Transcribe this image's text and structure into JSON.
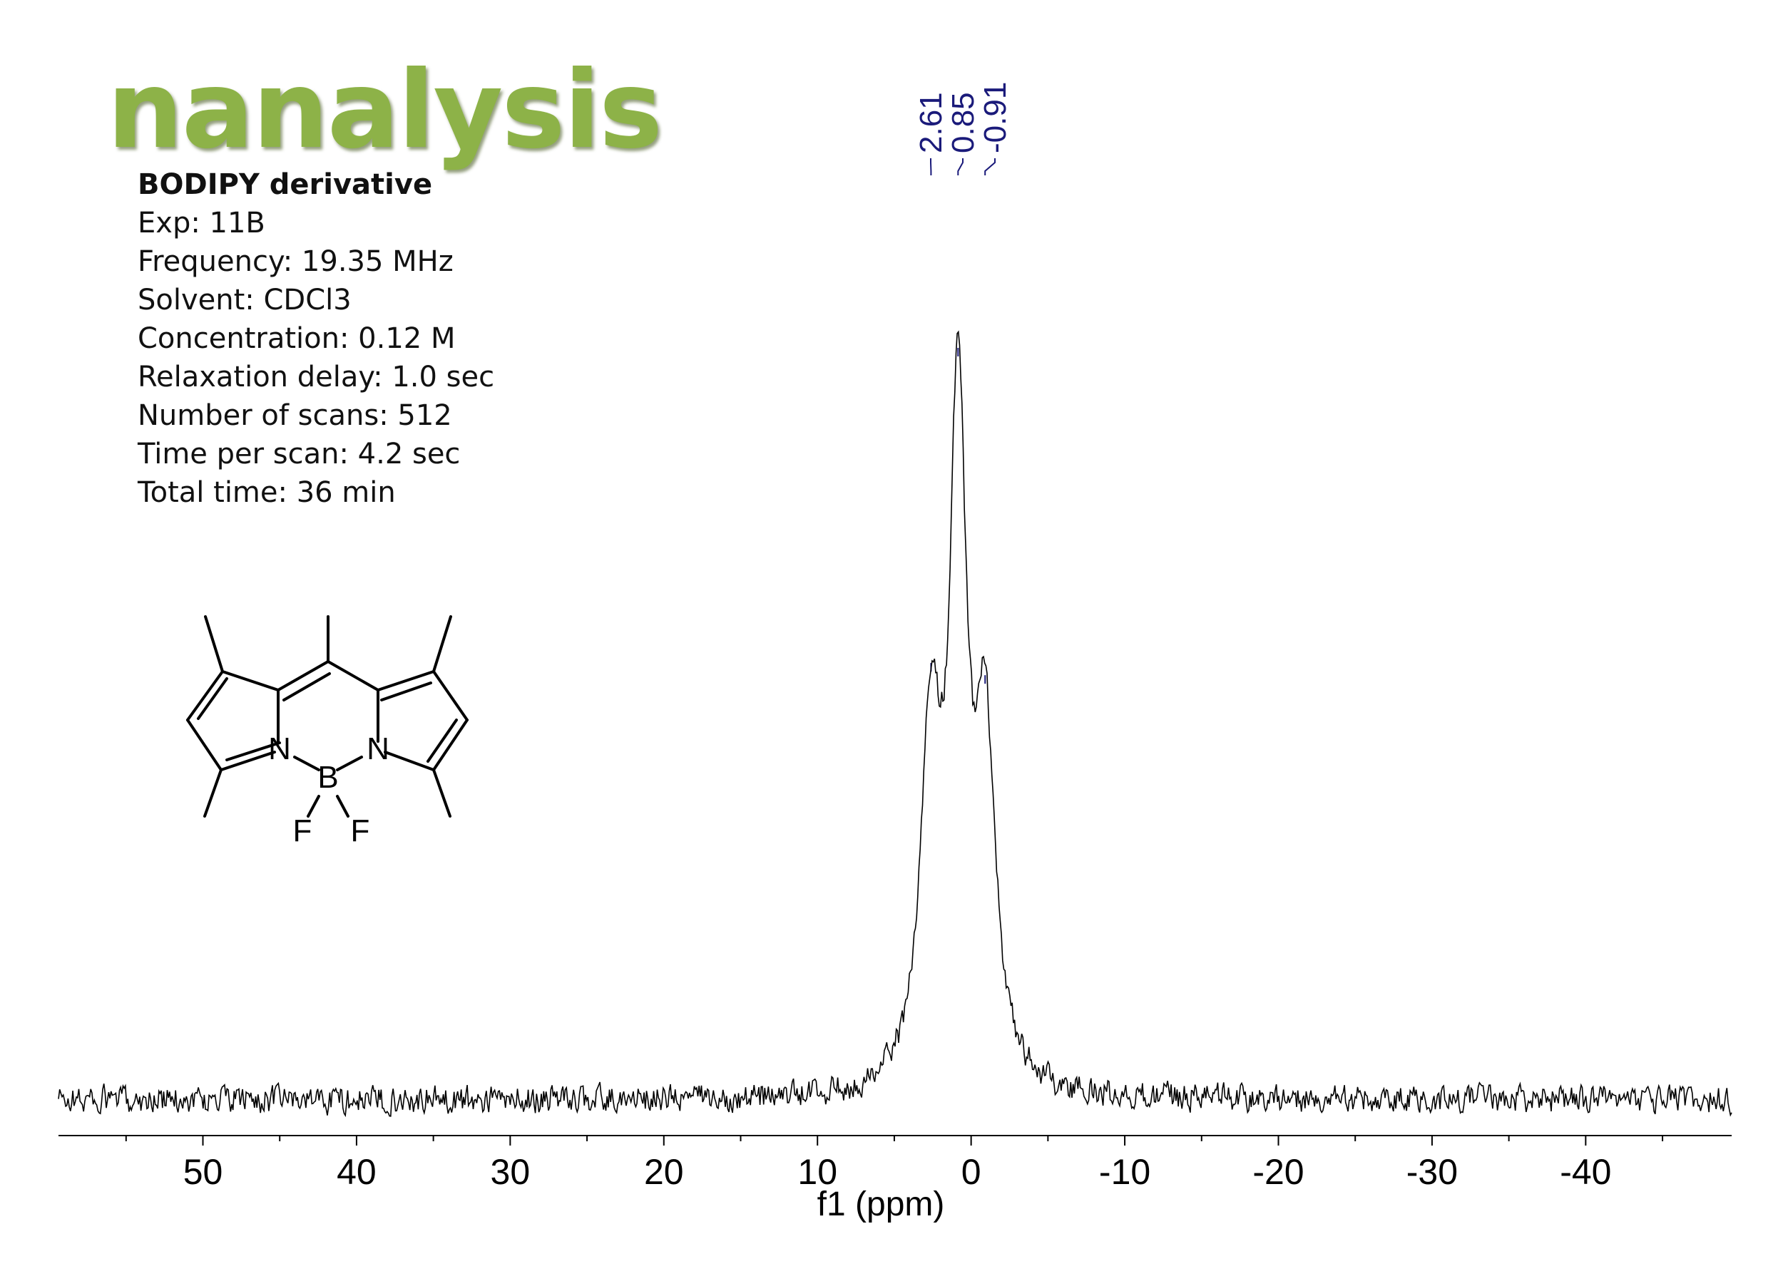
{
  "logo": {
    "text": "nanalysis",
    "color": "#8db248"
  },
  "sample": {
    "title": "BODIPY derivative",
    "lines": [
      "Exp: 11B",
      "Frequency: 19.35 MHz",
      "Solvent: CDCl3",
      "Concentration: 0.12 M",
      "Relaxation delay: 1.0 sec",
      "Number of scans: 512",
      "Time per scan: 4.2 sec",
      "Total time: 36 min"
    ]
  },
  "molecule": {
    "atom_labels": {
      "n_left": "N",
      "n_right": "N",
      "boron": "B",
      "f_left": "F",
      "f_right": "F"
    }
  },
  "chart_data": {
    "type": "line",
    "xlabel": "f1 (ppm)",
    "xlim": [
      59.4,
      -49.5
    ],
    "x_reversed": true,
    "x_ticks": [
      50,
      40,
      30,
      20,
      10,
      0,
      -10,
      -20,
      -30,
      -40
    ],
    "x_tick_labels": [
      "50",
      "40",
      "30",
      "20",
      "10",
      "0",
      "-10",
      "-20",
      "-30",
      "-40"
    ],
    "minor_tick_step": 5,
    "series": [
      {
        "peaks": [
          {
            "ppm": 2.61,
            "height": 0.52,
            "width": 0.75
          },
          {
            "ppm": 0.85,
            "height": 1.0,
            "width": 0.65
          },
          {
            "ppm": -0.91,
            "height": 0.5,
            "width": 0.75
          }
        ],
        "baseline_noise": 0.03,
        "color": "#000000"
      }
    ],
    "peak_labels": [
      "2.61",
      "0.85",
      "-0.91"
    ],
    "peak_label_ppm": [
      2.61,
      0.85,
      -0.91
    ],
    "peak_label_color": "#1a1a7a",
    "grid": false,
    "legend": false
  }
}
